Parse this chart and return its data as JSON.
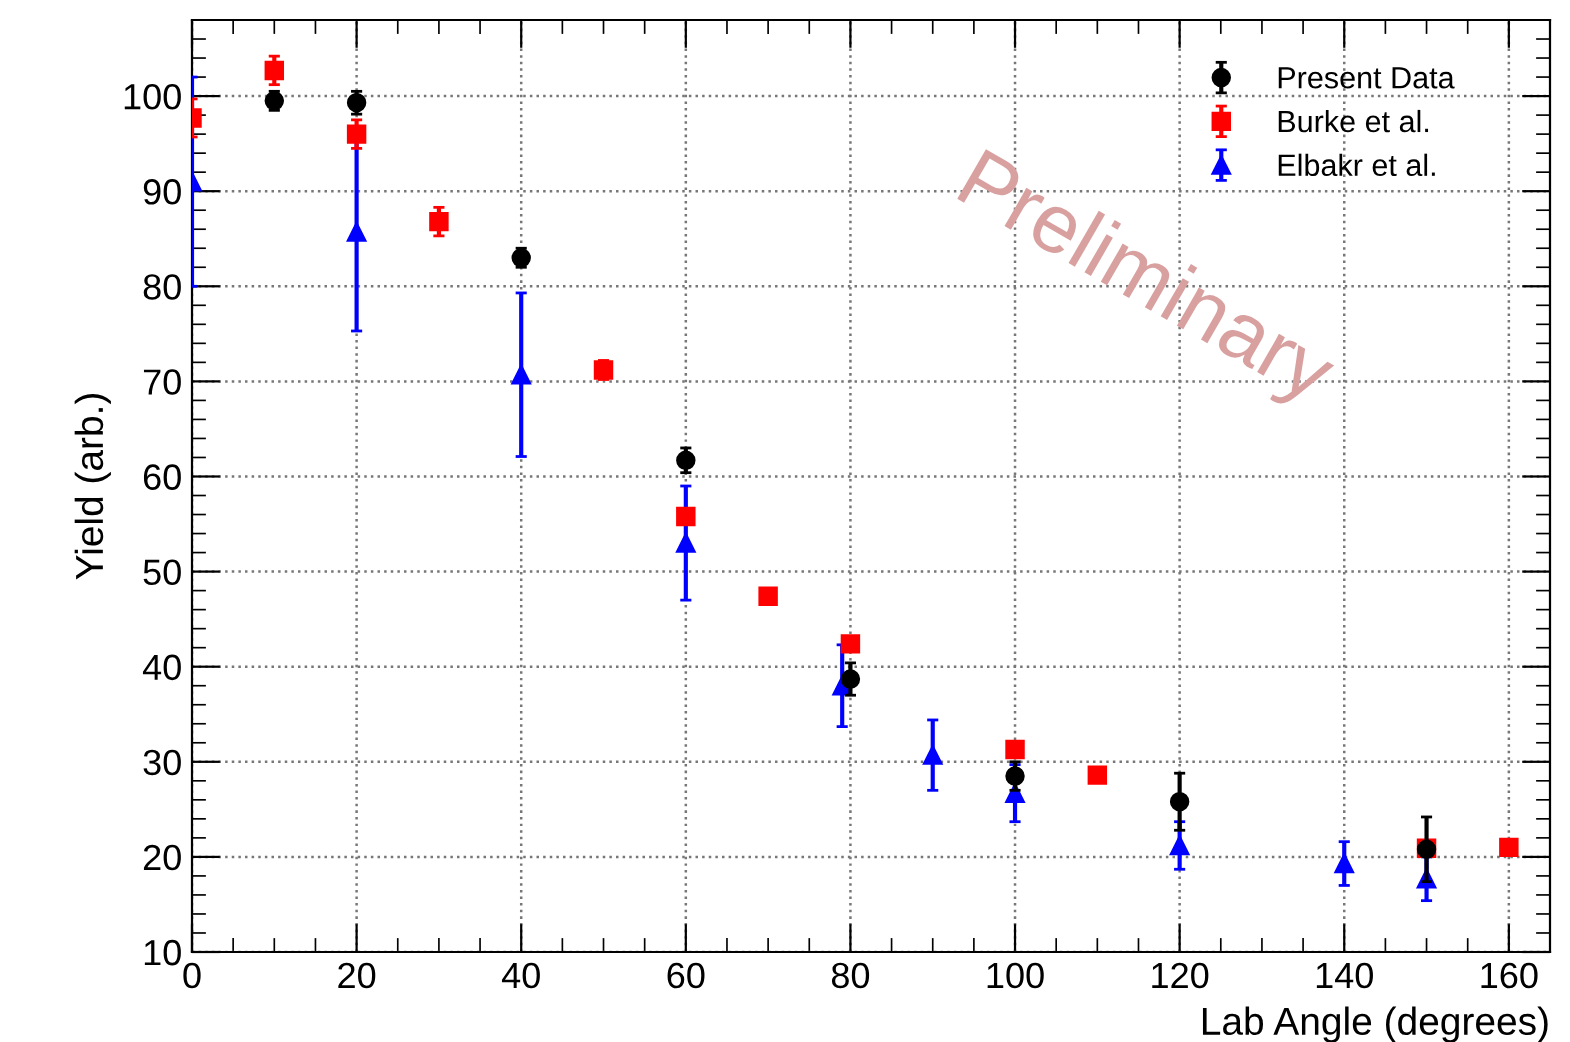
{
  "chart_data": {
    "type": "scatter",
    "xlabel": "Lab Angle (degrees)",
    "ylabel": "Yield (arb.)",
    "xlim": [
      0,
      165
    ],
    "ylim": [
      10,
      108
    ],
    "xticks": [
      0,
      20,
      40,
      60,
      80,
      100,
      120,
      140,
      160
    ],
    "yticks": [
      10,
      20,
      30,
      40,
      50,
      60,
      70,
      80,
      90,
      100
    ],
    "grid": true,
    "legend": "top right",
    "annotations": [
      "Preliminary"
    ],
    "series": [
      {
        "name": "Present Data",
        "color": "#000000",
        "marker": "circle",
        "x": [
          10,
          20,
          40,
          60,
          80,
          100,
          120,
          150
        ],
        "values": [
          99.5,
          99.3,
          83,
          61.7,
          38.7,
          28.5,
          25.8,
          20.8
        ],
        "errors": [
          1,
          1.2,
          1,
          1.3,
          1.7,
          1.5,
          3,
          3.4
        ]
      },
      {
        "name": "Burke et al.",
        "color": "#ff0000",
        "marker": "square",
        "x": [
          0,
          10,
          20,
          30,
          50,
          60,
          70,
          80,
          100,
          110,
          150,
          160
        ],
        "values": [
          97.7,
          102.7,
          96,
          86.8,
          71.2,
          55.8,
          47.4,
          42.4,
          31.3,
          28.6,
          20.9,
          21
        ],
        "errors": [
          2,
          1.5,
          1.5,
          1.5,
          1,
          null,
          null,
          null,
          null,
          null,
          null,
          null
        ]
      },
      {
        "name": "Elbakr et al.",
        "color": "#0000ff",
        "marker": "triangle",
        "x": [
          0,
          20,
          40,
          60,
          79,
          90,
          100,
          120,
          140,
          150
        ],
        "values": [
          91,
          85.7,
          70.7,
          53,
          38,
          30.7,
          26.7,
          21.2,
          19.3,
          17.7
        ],
        "errors": [
          11,
          10.4,
          8.6,
          6,
          4.3,
          3.7,
          3,
          2.5,
          2.3,
          2.3
        ]
      }
    ]
  }
}
